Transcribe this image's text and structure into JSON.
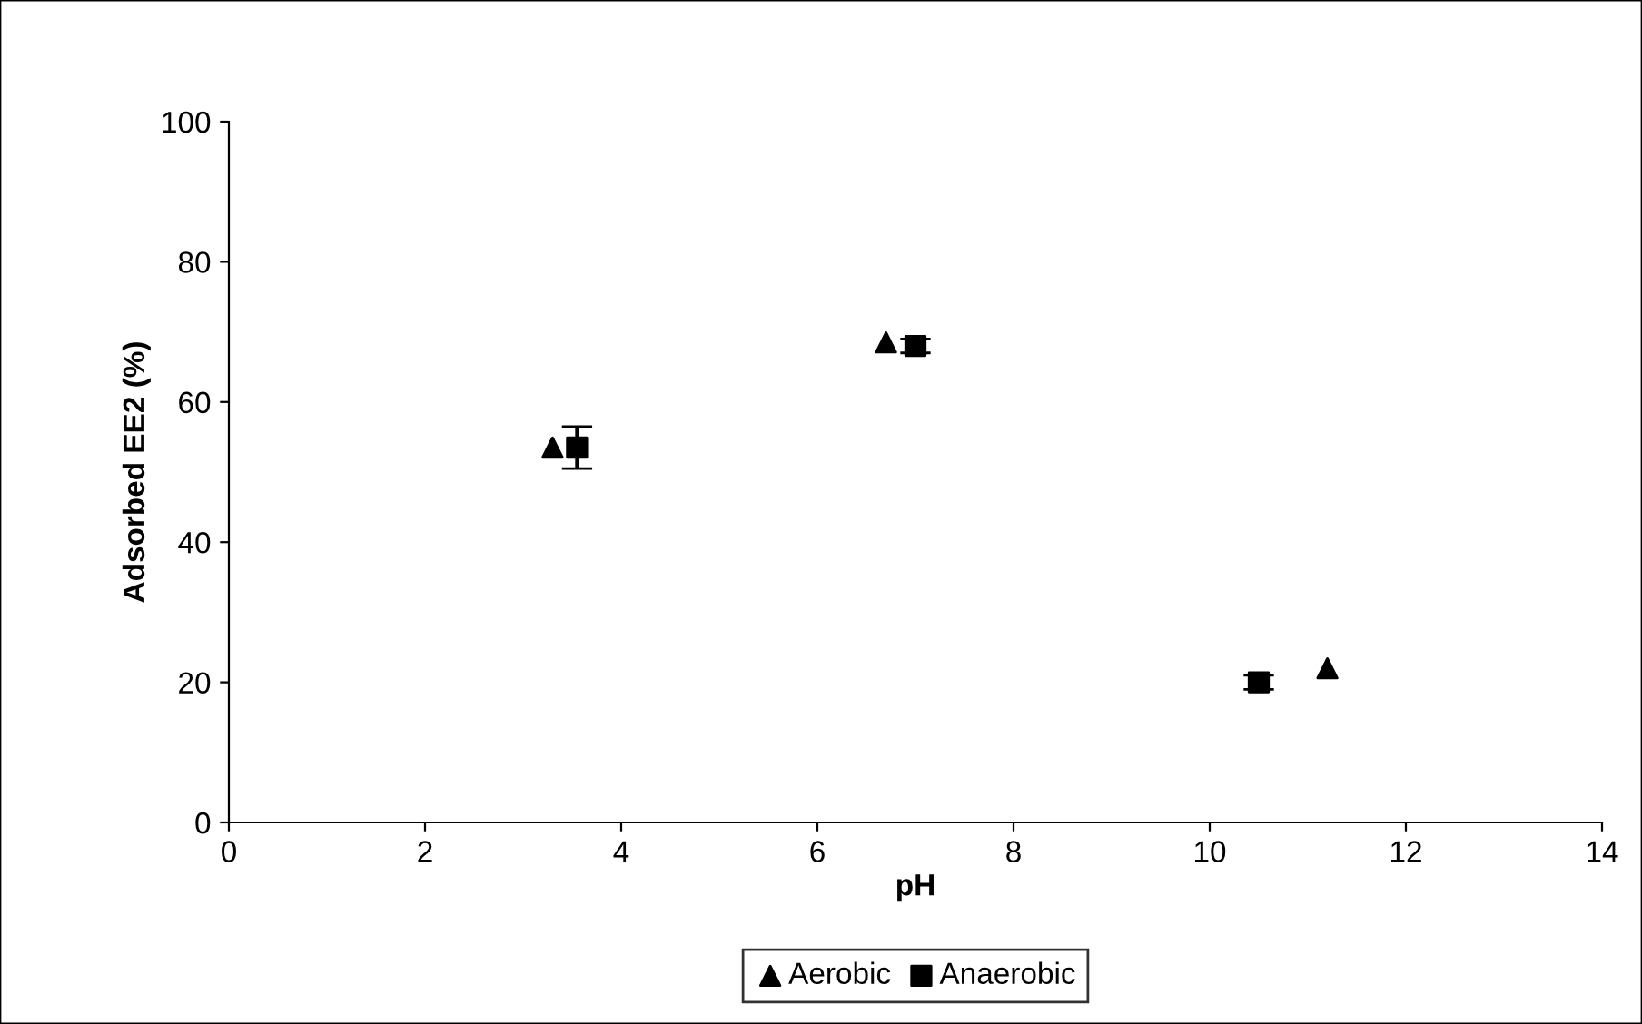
{
  "chart_data": {
    "type": "scatter",
    "xlabel": "pH",
    "ylabel": "Adsorbed EE2 (%)",
    "xlim": [
      0,
      14
    ],
    "xticks": [
      0,
      2,
      4,
      6,
      8,
      10,
      12,
      14
    ],
    "ylim": [
      0,
      100
    ],
    "yticks": [
      0,
      20,
      40,
      60,
      80,
      100
    ],
    "grid": false,
    "legend": "bottom",
    "series": [
      {
        "name": "Aerobic",
        "color": "#000000",
        "marker": "triangle",
        "x": [
          3.3,
          6.7,
          11.2
        ],
        "values": [
          53.5,
          68.5,
          22
        ]
      },
      {
        "name": "Anaerobic",
        "color": "#000000",
        "marker": "square",
        "x": [
          3.55,
          7.0,
          10.5
        ],
        "values": [
          53.5,
          68,
          20
        ],
        "errors": [
          3,
          1,
          1
        ]
      }
    ]
  }
}
